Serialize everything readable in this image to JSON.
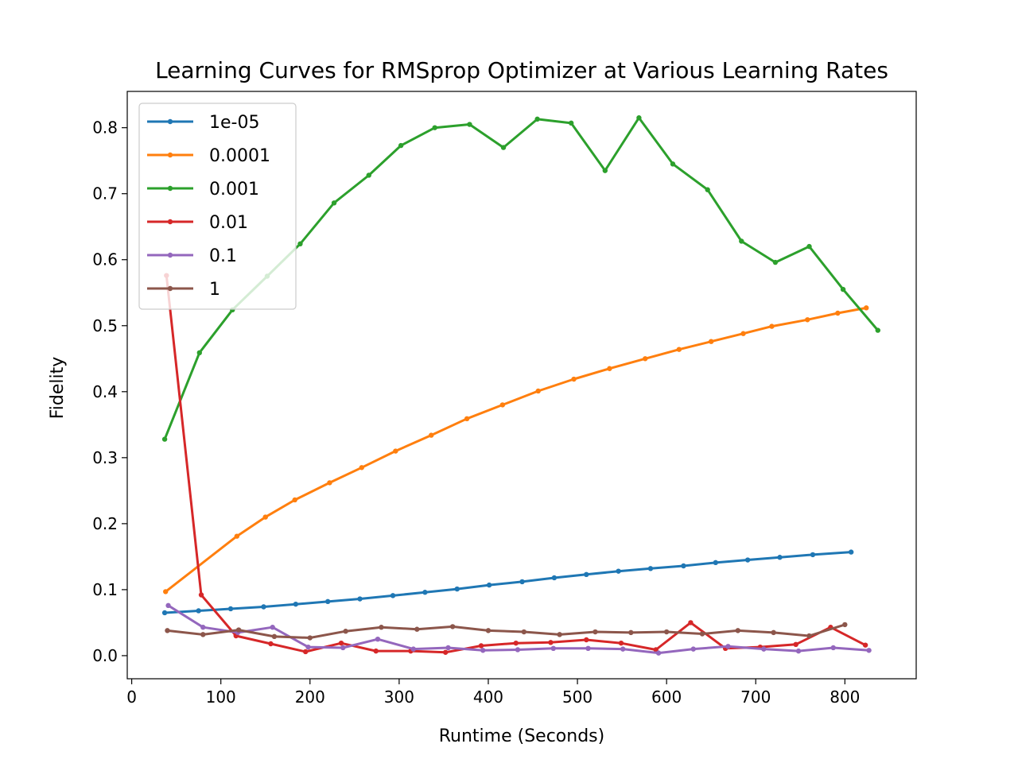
{
  "chart_data": {
    "type": "line",
    "title": "Learning Curves for RMSprop Optimizer at Various Learning Rates",
    "xlabel": "Runtime (Seconds)",
    "ylabel": "Fidelity",
    "xlim": [
      -5,
      880
    ],
    "ylim": [
      -0.035,
      0.855
    ],
    "xticks": [
      0,
      100,
      200,
      300,
      400,
      500,
      600,
      700,
      800
    ],
    "yticks": [
      0.0,
      0.1,
      0.2,
      0.3,
      0.4,
      0.5,
      0.6,
      0.7,
      0.8
    ],
    "xtick_labels": [
      "0",
      "100",
      "200",
      "300",
      "400",
      "500",
      "600",
      "700",
      "800"
    ],
    "ytick_labels": [
      "0.0",
      "0.1",
      "0.2",
      "0.3",
      "0.4",
      "0.5",
      "0.6",
      "0.7",
      "0.8"
    ],
    "grid": false,
    "legend_position": "upper-left",
    "series": [
      {
        "name": "1e-05",
        "color": "#1f77b4",
        "x": [
          37,
          75,
          111,
          148,
          184,
          220,
          256,
          293,
          329,
          365,
          401,
          438,
          474,
          510,
          546,
          582,
          619,
          655,
          691,
          727,
          764,
          807
        ],
        "y": [
          0.065,
          0.068,
          0.071,
          0.074,
          0.078,
          0.082,
          0.086,
          0.091,
          0.096,
          0.101,
          0.107,
          0.112,
          0.118,
          0.123,
          0.128,
          0.132,
          0.136,
          0.141,
          0.145,
          0.149,
          0.153,
          0.157
        ]
      },
      {
        "name": "0.0001",
        "color": "#ff7f0e",
        "x": [
          38,
          118,
          150,
          183,
          222,
          258,
          296,
          336,
          376,
          416,
          456,
          496,
          536,
          576,
          614,
          650,
          686,
          718,
          758,
          792,
          824
        ],
        "y": [
          0.097,
          0.181,
          0.21,
          0.236,
          0.262,
          0.285,
          0.31,
          0.334,
          0.359,
          0.38,
          0.401,
          0.419,
          0.435,
          0.45,
          0.464,
          0.476,
          0.488,
          0.499,
          0.509,
          0.519,
          0.527
        ]
      },
      {
        "name": "0.001",
        "color": "#2ca02c",
        "x": [
          37,
          76,
          113,
          152,
          189,
          227,
          266,
          302,
          340,
          379,
          417,
          455,
          493,
          531,
          569,
          607,
          646,
          684,
          722,
          760,
          798,
          837
        ],
        "y": [
          0.328,
          0.459,
          0.524,
          0.575,
          0.624,
          0.686,
          0.728,
          0.773,
          0.8,
          0.805,
          0.77,
          0.813,
          0.807,
          0.735,
          0.815,
          0.745,
          0.706,
          0.628,
          0.596,
          0.62,
          0.555,
          0.493
        ]
      },
      {
        "name": "0.01",
        "color": "#d62728",
        "x": [
          39,
          78,
          117,
          156,
          195,
          235,
          274,
          313,
          352,
          392,
          431,
          470,
          510,
          549,
          588,
          627,
          666,
          705,
          745,
          784,
          823
        ],
        "y": [
          0.576,
          0.092,
          0.03,
          0.018,
          0.006,
          0.019,
          0.007,
          0.007,
          0.005,
          0.015,
          0.019,
          0.02,
          0.024,
          0.019,
          0.009,
          0.05,
          0.011,
          0.013,
          0.017,
          0.043,
          0.016
        ]
      },
      {
        "name": "0.1",
        "color": "#9467bd",
        "x": [
          41,
          80,
          119,
          158,
          198,
          237,
          276,
          316,
          355,
          394,
          433,
          473,
          512,
          551,
          591,
          630,
          669,
          709,
          748,
          787,
          827
        ],
        "y": [
          0.076,
          0.043,
          0.035,
          0.043,
          0.013,
          0.012,
          0.025,
          0.01,
          0.012,
          0.008,
          0.009,
          0.011,
          0.011,
          0.01,
          0.004,
          0.01,
          0.014,
          0.01,
          0.007,
          0.012,
          0.008
        ]
      },
      {
        "name": "1",
        "color": "#8c564b",
        "x": [
          40,
          80,
          120,
          160,
          200,
          240,
          280,
          320,
          360,
          400,
          440,
          480,
          520,
          560,
          600,
          640,
          680,
          720,
          760,
          800
        ],
        "y": [
          0.038,
          0.032,
          0.039,
          0.029,
          0.027,
          0.037,
          0.043,
          0.04,
          0.044,
          0.038,
          0.036,
          0.032,
          0.036,
          0.035,
          0.036,
          0.033,
          0.038,
          0.035,
          0.03,
          0.047
        ]
      }
    ]
  }
}
